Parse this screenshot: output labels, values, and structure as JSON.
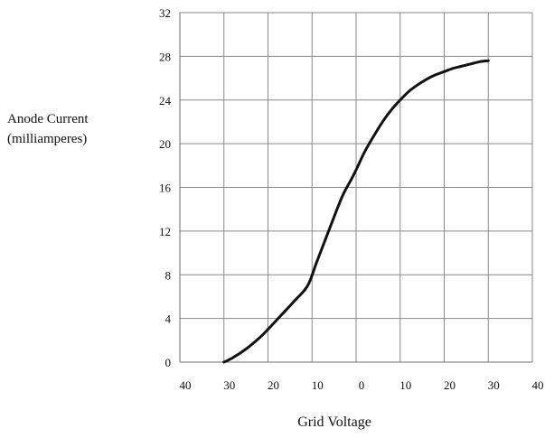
{
  "chart_data": {
    "type": "line",
    "title": "",
    "ylabel_lines": [
      "Anode Current",
      "(milliamperes)"
    ],
    "xlabel": "Grid Voltage",
    "ylim": [
      0,
      32
    ],
    "xlim": [
      -40,
      40
    ],
    "y_ticks": [
      0,
      4,
      8,
      12,
      16,
      20,
      24,
      28,
      32
    ],
    "y_tick_labels": [
      "0",
      "4",
      "8",
      "12",
      "16",
      "20",
      "24",
      "28",
      "32"
    ],
    "x_ticks": [
      -40,
      -30,
      -20,
      -10,
      0,
      10,
      20,
      30,
      40
    ],
    "x_tick_labels": [
      "40",
      "30",
      "20",
      "10",
      "0",
      "10",
      "20",
      "30",
      "40"
    ],
    "grid": true,
    "line_color": "#111111",
    "grid_color": "#8a8a8a",
    "series": [
      {
        "x": [
          -30,
          -28,
          -25,
          -22,
          -20,
          -17,
          -14,
          -11,
          -9,
          -7,
          -5,
          -3,
          -1,
          0,
          2,
          4,
          6,
          8,
          10,
          12,
          14,
          16,
          18,
          20,
          22,
          24,
          26,
          28,
          30
        ],
        "y": [
          0,
          0.4,
          1.2,
          2.2,
          3,
          4.3,
          5.6,
          7,
          9.1,
          11.2,
          13.3,
          15.3,
          16.8,
          17.6,
          19.3,
          20.7,
          22,
          23.1,
          24,
          24.8,
          25.4,
          25.9,
          26.3,
          26.6,
          26.9,
          27.1,
          27.3,
          27.5,
          27.6
        ]
      }
    ]
  }
}
